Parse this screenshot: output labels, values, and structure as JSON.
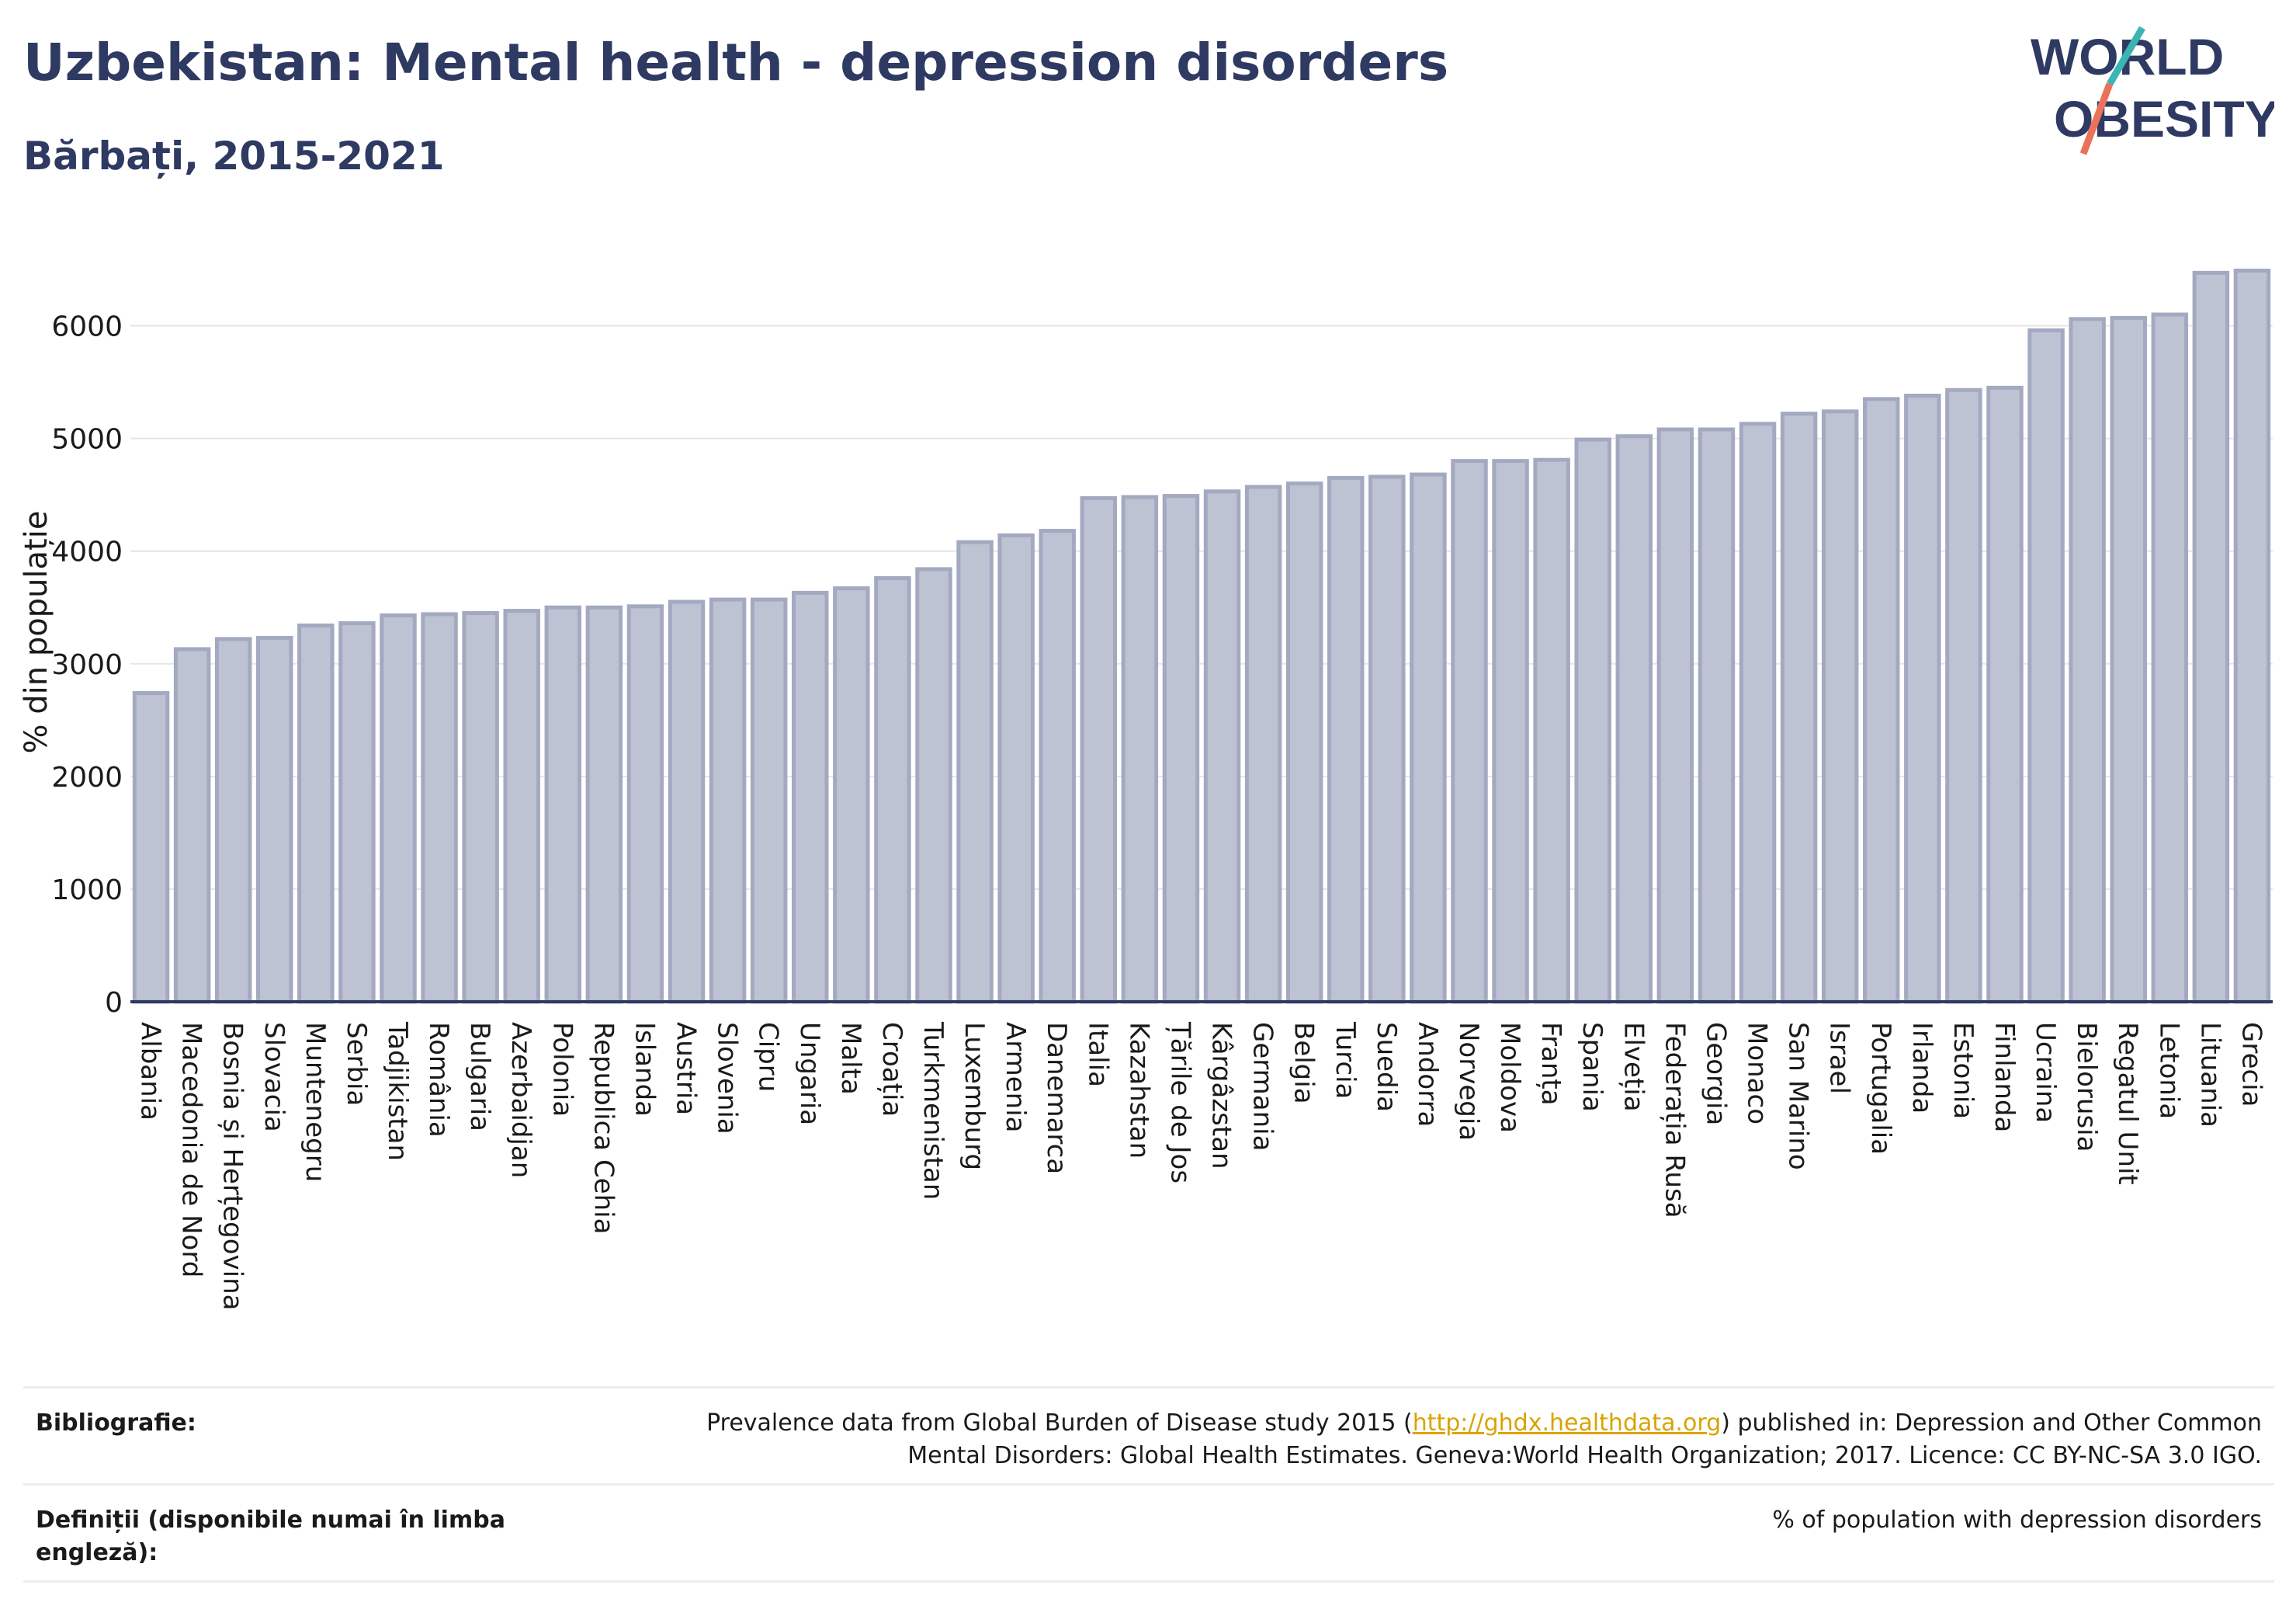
{
  "header": {
    "title": "Uzbekistan: Mental health - depression disorders",
    "subtitle": "Bărbați, 2015-2021"
  },
  "logo": {
    "line1": "WORLD",
    "line2": "OBESITY",
    "colors": {
      "text": "#2f3a63",
      "slash_teal": "#3bb4b4",
      "slash_coral": "#e8735a"
    }
  },
  "chart_data": {
    "type": "bar",
    "ylabel": "% din populație",
    "xlabel": "",
    "ylim": [
      0,
      6700
    ],
    "yticks": [
      0,
      1000,
      2000,
      3000,
      4000,
      5000,
      6000
    ],
    "grid": true,
    "bar_fill": "#bec3d3",
    "bar_stroke": "#a3a9c0",
    "axis_color": "#2f3a63",
    "categories": [
      "Albania",
      "Macedonia de Nord",
      "Bosnia și Herțegovina",
      "Slovacia",
      "Muntenegru",
      "Serbia",
      "Tadjikistan",
      "România",
      "Bulgaria",
      "Azerbaidjan",
      "Polonia",
      "Republica Cehia",
      "Islanda",
      "Austria",
      "Slovenia",
      "Cipru",
      "Ungaria",
      "Malta",
      "Croația",
      "Turkmenistan",
      "Luxemburg",
      "Armenia",
      "Danemarca",
      "Italia",
      "Kazahstan",
      "Țările de Jos",
      "Kârgâzstan",
      "Germania",
      "Belgia",
      "Turcia",
      "Suedia",
      "Andorra",
      "Norvegia",
      "Moldova",
      "Franța",
      "Spania",
      "Elveția",
      "Federația Rusă",
      "Georgia",
      "Monaco",
      "San Marino",
      "Israel",
      "Portugalia",
      "Irlanda",
      "Estonia",
      "Finlanda",
      "Ucraina",
      "Bielorusia",
      "Regatul Unit",
      "Letonia",
      "Lituania",
      "Grecia"
    ],
    "values": [
      2740,
      3130,
      3220,
      3230,
      3340,
      3360,
      3430,
      3440,
      3450,
      3470,
      3500,
      3500,
      3510,
      3550,
      3570,
      3570,
      3630,
      3670,
      3760,
      3840,
      4080,
      4140,
      4180,
      4470,
      4480,
      4490,
      4530,
      4570,
      4600,
      4650,
      4660,
      4680,
      4800,
      4800,
      4810,
      4990,
      5020,
      5080,
      5080,
      5130,
      5220,
      5240,
      5350,
      5380,
      5430,
      5450,
      5960,
      6060,
      6070,
      6100,
      6470,
      6490
    ]
  },
  "footer": {
    "bibliography_label": "Bibliografie:",
    "bibliography_pre": "Prevalence data from Global Burden of Disease study 2015 (",
    "bibliography_link": "http://ghdx.healthdata.org",
    "bibliography_post": ") published in: Depression and Other Common",
    "bibliography_line2": "Mental Disorders: Global Health Estimates. Geneva:World Health Organization; 2017. Licence: CC BY-NC-SA 3.0 IGO.",
    "definitions_label_line1": "Definiții (disponibile numai în limba",
    "definitions_label_line2": "engleză):",
    "definitions_value": "% of population with depression disorders"
  }
}
